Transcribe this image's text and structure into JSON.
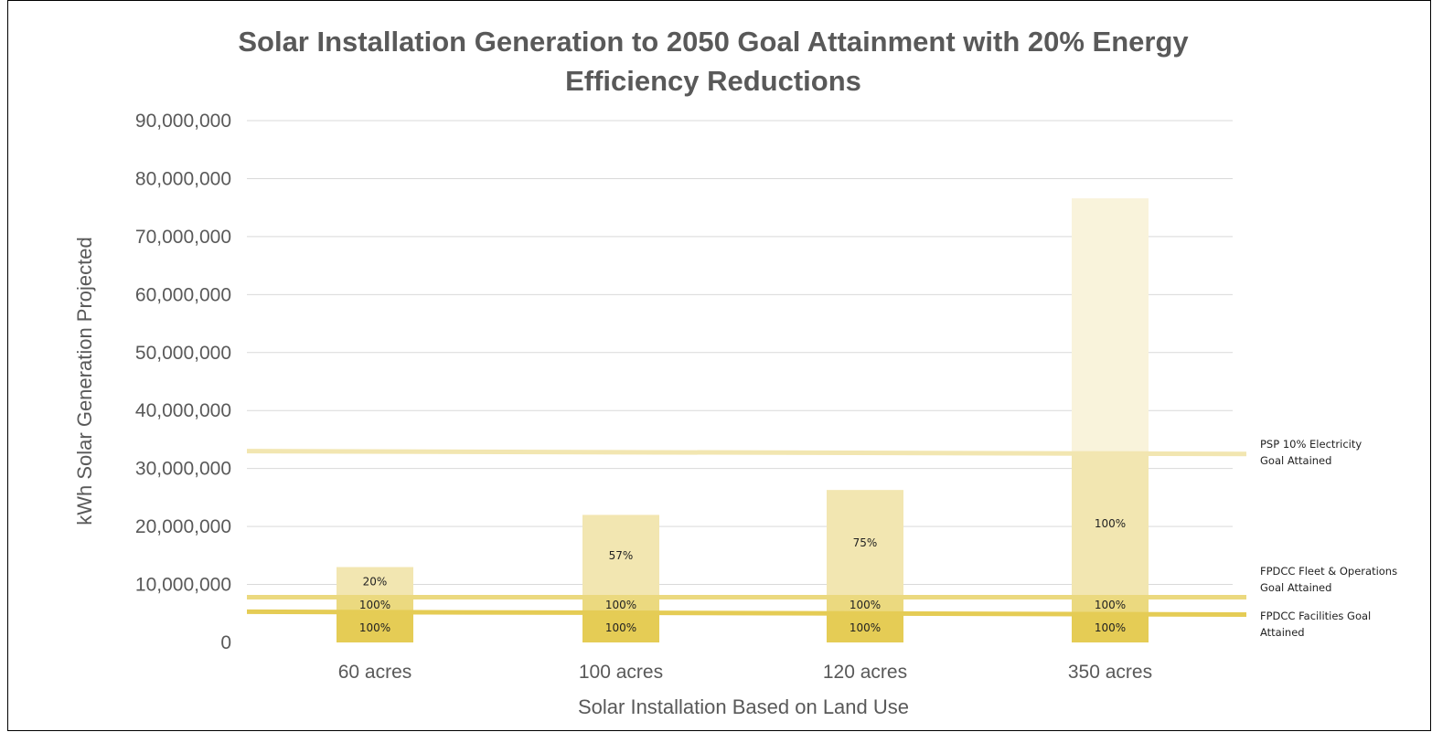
{
  "chart_data": {
    "type": "bar",
    "stacked": true,
    "title_lines": [
      "Solar Installation Generation to 2050 Goal Attainment with 20% Energy",
      "Efficiency Reductions"
    ],
    "xlabel": "Solar Installation Based on Land Use",
    "ylabel": "kWh Solar Generation Projected",
    "ylim": [
      0,
      90000000
    ],
    "yticks": [
      {
        "value": 0,
        "label": "0"
      },
      {
        "value": 10000000,
        "label": "10,000,000"
      },
      {
        "value": 20000000,
        "label": "20,000,000"
      },
      {
        "value": 30000000,
        "label": "30,000,000"
      },
      {
        "value": 40000000,
        "label": "40,000,000"
      },
      {
        "value": 50000000,
        "label": "50,000,000"
      },
      {
        "value": 60000000,
        "label": "60,000,000"
      },
      {
        "value": 70000000,
        "label": "70,000,000"
      },
      {
        "value": 80000000,
        "label": "80,000,000"
      },
      {
        "value": 90000000,
        "label": "90,000,000"
      }
    ],
    "grid": true,
    "categories": [
      "60 acres",
      "100 acres",
      "120 acres",
      "350 acres"
    ],
    "series": [
      {
        "color": "#E5CC55",
        "values": [
          5000000,
          5000000,
          5000000,
          5000000
        ],
        "labels": [
          "100%",
          "100%",
          "100%",
          "100%"
        ]
      },
      {
        "color": "#EBD97F",
        "values": [
          3000000,
          3000000,
          3000000,
          3000000
        ],
        "labels": [
          "100%",
          "100%",
          "100%",
          "100%"
        ]
      },
      {
        "color": "#F2E6B1",
        "values": [
          5000000,
          14000000,
          18300000,
          25000000
        ],
        "labels": [
          "20%",
          "57%",
          "75%",
          "100%"
        ]
      },
      {
        "color": "#F9F3DB",
        "values": [
          0,
          0,
          0,
          43600000
        ],
        "labels": [
          "",
          "",
          "",
          ""
        ]
      }
    ],
    "reference_lines": [
      {
        "value": 33000000,
        "end_value": 32500000,
        "color": "#F2E6B1",
        "label_lines": [
          "PSP 10% Electricity",
          "Goal Attained"
        ]
      },
      {
        "value": 7800000,
        "end_value": 7800000,
        "color": "#EBD97F",
        "label_lines": [
          "FPDCC Fleet & Operations",
          "Goal Attained"
        ]
      },
      {
        "value": 5300000,
        "end_value": 4800000,
        "color": "#E5CC55",
        "label_lines": [
          "FPDCC Facilities Goal",
          "Attained"
        ]
      }
    ]
  }
}
